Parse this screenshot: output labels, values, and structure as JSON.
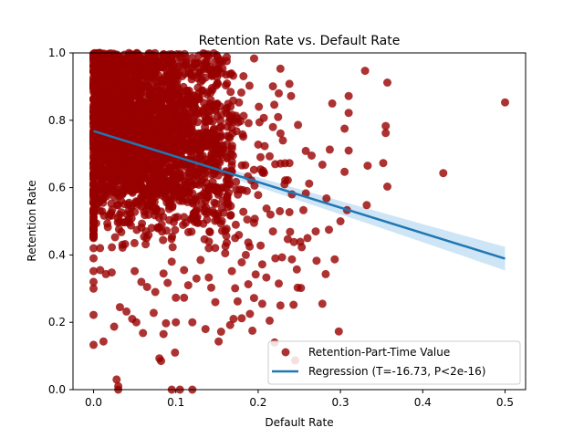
{
  "chart_data": {
    "type": "scatter",
    "title": "Retention Rate vs. Default Rate",
    "xlabel": "Default Rate",
    "ylabel": "Retention Rate",
    "xlim": [
      -0.025,
      0.525
    ],
    "ylim": [
      0.0,
      1.0
    ],
    "x_ticks": [
      0.0,
      0.1,
      0.2,
      0.3,
      0.4,
      0.5
    ],
    "x_tick_labels": [
      "0.0",
      "0.1",
      "0.2",
      "0.3",
      "0.4",
      "0.5"
    ],
    "y_ticks": [
      0.0,
      0.2,
      0.4,
      0.6,
      0.8,
      1.0
    ],
    "y_tick_labels": [
      "0.0",
      "0.2",
      "0.4",
      "0.6",
      "0.8",
      "1.0"
    ],
    "grid": false,
    "legend_position": "lower-right",
    "colors": {
      "points": "#990000",
      "line": "#1f77b4",
      "band": "#aed3ee"
    },
    "series": [
      {
        "name": "Retention-Part-Time Value",
        "kind": "scatter",
        "points": [
          [
            0.5,
            0.853
          ],
          [
            0.425,
            0.643
          ],
          [
            0.357,
            0.912
          ],
          [
            0.355,
            0.783
          ],
          [
            0.355,
            0.762
          ],
          [
            0.357,
            0.603
          ],
          [
            0.352,
            0.673
          ],
          [
            0.33,
            0.947
          ],
          [
            0.333,
            0.665
          ],
          [
            0.332,
            0.548
          ],
          [
            0.31,
            0.872
          ],
          [
            0.31,
            0.822
          ],
          [
            0.305,
            0.775
          ],
          [
            0.31,
            0.71
          ],
          [
            0.305,
            0.647
          ],
          [
            0.308,
            0.533
          ],
          [
            0.298,
            0.173
          ],
          [
            0.3,
            0.5
          ],
          [
            0.29,
            0.85
          ],
          [
            0.287,
            0.713
          ],
          [
            0.278,
            0.668
          ],
          [
            0.283,
            0.568
          ],
          [
            0.286,
            0.475
          ],
          [
            0.293,
            0.387
          ],
          [
            0.282,
            0.343
          ],
          [
            0.278,
            0.255
          ],
          [
            0.271,
            0.383
          ],
          [
            0.262,
            0.612
          ],
          [
            0.258,
            0.583
          ],
          [
            0.255,
            0.533
          ],
          [
            0.26,
            0.45
          ],
          [
            0.265,
            0.695
          ],
          [
            0.27,
            0.47
          ],
          [
            0.245,
            0.087
          ],
          [
            0.243,
            0.252
          ],
          [
            0.248,
            0.303
          ],
          [
            0.252,
            0.302
          ],
          [
            0.247,
            0.357
          ],
          [
            0.253,
            0.423
          ],
          [
            0.241,
            0.387
          ],
          [
            0.238,
            0.527
          ],
          [
            0.236,
            0.622
          ],
          [
            0.238,
            0.673
          ],
          [
            0.241,
            0.58
          ],
          [
            0.236,
            0.447
          ],
          [
            0.24,
            0.872
          ],
          [
            0.238,
            0.908
          ],
          [
            0.227,
            0.953
          ],
          [
            0.225,
            0.88
          ],
          [
            0.23,
            0.74
          ],
          [
            0.232,
            0.61
          ],
          [
            0.229,
            0.393
          ],
          [
            0.225,
            0.315
          ],
          [
            0.227,
            0.25
          ],
          [
            0.221,
            0.39
          ],
          [
            0.218,
            0.47
          ],
          [
            0.215,
            0.52
          ],
          [
            0.214,
            0.693
          ],
          [
            0.218,
            0.78
          ],
          [
            0.21,
            0.333
          ],
          [
            0.205,
            0.372
          ],
          [
            0.203,
            0.428
          ],
          [
            0.2,
            0.578
          ],
          [
            0.206,
            0.65
          ],
          [
            0.193,
            0.175
          ],
          [
            0.19,
            0.225
          ],
          [
            0.195,
            0.272
          ],
          [
            0.188,
            0.313
          ],
          [
            0.197,
            0.342
          ],
          [
            0.18,
            0.378
          ],
          [
            0.188,
            0.437
          ],
          [
            0.195,
            0.495
          ],
          [
            0.175,
            0.262
          ],
          [
            0.172,
            0.301
          ],
          [
            0.168,
            0.352
          ],
          [
            0.18,
            0.212
          ],
          [
            0.17,
            0.21
          ],
          [
            0.166,
            0.192
          ],
          [
            0.152,
            0.143
          ],
          [
            0.155,
            0.172
          ],
          [
            0.148,
            0.26
          ],
          [
            0.143,
            0.303
          ],
          [
            0.14,
            0.333
          ],
          [
            0.136,
            0.18
          ],
          [
            0.12,
            0.2
          ],
          [
            0.11,
            0.273
          ],
          [
            0.1,
            0.273
          ],
          [
            0.1,
            0.2
          ],
          [
            0.099,
            0.11
          ],
          [
            0.095,
            0.0
          ],
          [
            0.105,
            0.0
          ],
          [
            0.12,
            0.0
          ],
          [
            0.082,
            0.085
          ],
          [
            0.08,
            0.093
          ],
          [
            0.088,
            0.197
          ],
          [
            0.085,
            0.165
          ],
          [
            0.073,
            0.228
          ],
          [
            0.06,
            0.168
          ],
          [
            0.052,
            0.2
          ],
          [
            0.047,
            0.21
          ],
          [
            0.04,
            0.232
          ],
          [
            0.032,
            0.245
          ],
          [
            0.025,
            0.187
          ],
          [
            0.012,
            0.143
          ],
          [
            0.0,
            0.133
          ],
          [
            0.0,
            0.222
          ],
          [
            0.03,
            0.0
          ],
          [
            0.028,
            0.03
          ],
          [
            0.03,
            0.01
          ],
          [
            0.035,
            0.43
          ],
          [
            0.022,
            0.348
          ],
          [
            0.015,
            0.343
          ],
          [
            0.008,
            0.355
          ],
          [
            0.0,
            0.3
          ],
          [
            0.0,
            0.32
          ],
          [
            0.0,
            0.352
          ],
          [
            0.0,
            0.39
          ],
          [
            0.0,
            0.42
          ],
          [
            0.0,
            0.45
          ],
          [
            0.05,
            0.352
          ],
          [
            0.058,
            0.32
          ],
          [
            0.065,
            0.305
          ],
          [
            0.075,
            0.29
          ],
          [
            0.085,
            0.345
          ],
          [
            0.09,
            0.317
          ],
          [
            0.095,
            0.38
          ],
          [
            0.11,
            0.355
          ],
          [
            0.115,
            0.31
          ],
          [
            0.125,
            0.33
          ],
          [
            0.13,
            0.385
          ],
          [
            0.14,
            0.42
          ],
          [
            0.16,
            0.405
          ],
          [
            0.172,
            0.45
          ],
          [
            0.185,
            0.4
          ],
          [
            0.205,
            0.255
          ],
          [
            0.214,
            0.205
          ],
          [
            0.22,
            0.14
          ]
        ]
      },
      {
        "name": "Regression (T=-16.73, P<2e-16)",
        "kind": "line",
        "x": [
          0.0,
          0.5
        ],
        "y": [
          0.768,
          0.389
        ],
        "band_half_width": [
          0.008,
          0.035
        ]
      }
    ]
  }
}
